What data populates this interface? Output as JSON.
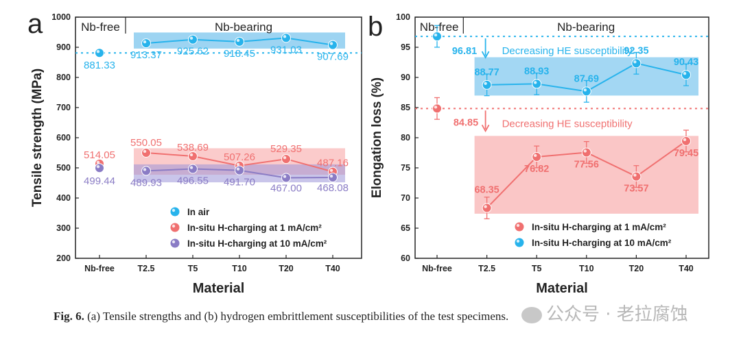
{
  "figure_label": "Fig. 6.",
  "caption": "(a) Tensile strengths and (b) hydrogen embrittlement susceptibilities of the test specimens.",
  "watermark": "公众号 · 老拉腐蚀",
  "colors": {
    "blue": "#27b3ec",
    "red": "#f07070",
    "purple": "#8a7cc5",
    "blue_band": "#7cc6ee",
    "red_band": "#f7a0a0",
    "purple_band": "#9c95d8"
  },
  "chart_data": [
    {
      "panel": "a",
      "type": "line",
      "xlabel": "Material",
      "ylabel": "Tensile strength (MPa)",
      "categories": [
        "Nb-free",
        "T2.5",
        "T5",
        "T10",
        "T20",
        "T40"
      ],
      "ylim": [
        200,
        1000
      ],
      "yticks": [
        200,
        300,
        400,
        500,
        600,
        700,
        800,
        900,
        1000
      ],
      "region_labels": [
        "Nb-free",
        "Nb-bearing"
      ],
      "legend_position": "bottom-center",
      "series": [
        {
          "name": "In air",
          "color": "#27b3ec",
          "values": [
            881.33,
            913.37,
            925.62,
            918.45,
            931.03,
            907.69
          ],
          "labels": [
            "881.33",
            "913.37",
            "925.62",
            "918.45",
            "931.03",
            "907.69"
          ]
        },
        {
          "name": "In-situ H-charging at 1 mA/cm²",
          "color": "#f07070",
          "values": [
            514.05,
            550.05,
            538.69,
            507.26,
            529.35,
            487.16
          ],
          "labels": [
            "514.05",
            "550.05",
            "538.69",
            "507.26",
            "529.35",
            "487.16"
          ]
        },
        {
          "name": "In-situ H-charging at 10 mA/cm²",
          "color": "#8a7cc5",
          "values": [
            499.44,
            489.93,
            496.55,
            491.7,
            467.0,
            468.08
          ],
          "labels": [
            "499.44",
            "489.93",
            "496.55",
            "491.70",
            "467.00",
            "468.08"
          ]
        }
      ]
    },
    {
      "panel": "b",
      "type": "line",
      "xlabel": "Material",
      "ylabel": "Elongation loss (%)",
      "categories": [
        "Nb-free",
        "T2.5",
        "T5",
        "T10",
        "T20",
        "T40"
      ],
      "ylim": [
        60,
        100
      ],
      "yticks": [
        60,
        65,
        70,
        75,
        80,
        85,
        90,
        95,
        100
      ],
      "region_labels": [
        "Nb-free",
        "Nb-bearing"
      ],
      "annotations": [
        "Decreasing HE susceptibility",
        "Decreasing HE susceptibility"
      ],
      "legend_position": "bottom-right",
      "series": [
        {
          "name": "In-situ H-charging at 1 mA/cm²",
          "color": "#f07070",
          "values": [
            84.85,
            68.35,
            76.82,
            77.56,
            73.57,
            79.45
          ],
          "labels": [
            "84.85",
            "68.35",
            "76.82",
            "77.56",
            "73.57",
            "79.45"
          ]
        },
        {
          "name": "In-situ H-charging at 10 mA/cm²",
          "color": "#27b3ec",
          "values": [
            96.81,
            88.77,
            88.93,
            87.69,
            92.35,
            90.43
          ],
          "labels": [
            "96.81",
            "88.77",
            "88.93",
            "87.69",
            "92.35",
            "90.43"
          ]
        }
      ]
    }
  ]
}
